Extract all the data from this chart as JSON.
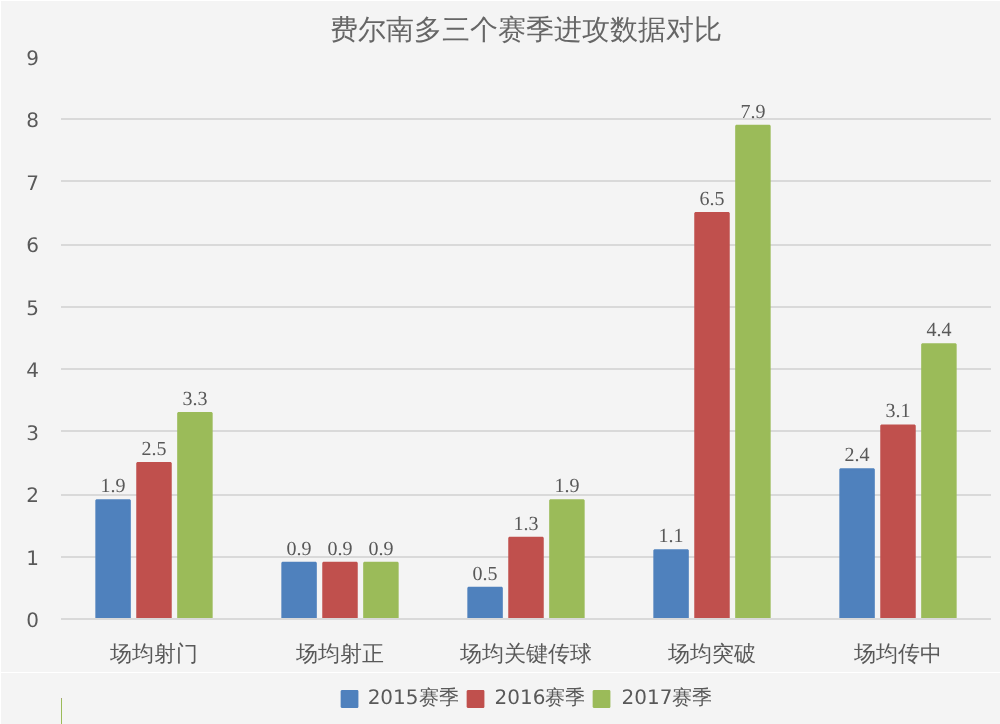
{
  "chart_data": {
    "type": "bar",
    "title": "费尔南多三个赛季进攻数据对比",
    "categories": [
      "场均射门",
      "场均射正",
      "场均关键传球",
      "场均突破",
      "场均传中"
    ],
    "series": [
      {
        "name": "2015赛季",
        "color": "#4f81bd",
        "values": [
          1.9,
          0.9,
          0.5,
          1.1,
          2.4
        ]
      },
      {
        "name": "2016赛季",
        "color": "#c0504d",
        "values": [
          2.5,
          0.9,
          1.3,
          6.5,
          3.1
        ]
      },
      {
        "name": "2017赛季",
        "color": "#9bbb59",
        "values": [
          3.3,
          0.9,
          1.9,
          7.9,
          4.4
        ]
      }
    ],
    "ylim": [
      0,
      9
    ],
    "yticks": [
      0,
      1,
      2,
      3,
      4,
      5,
      6,
      7,
      8,
      9
    ],
    "grid": "y",
    "legend": "bottom",
    "data_labels": true
  }
}
